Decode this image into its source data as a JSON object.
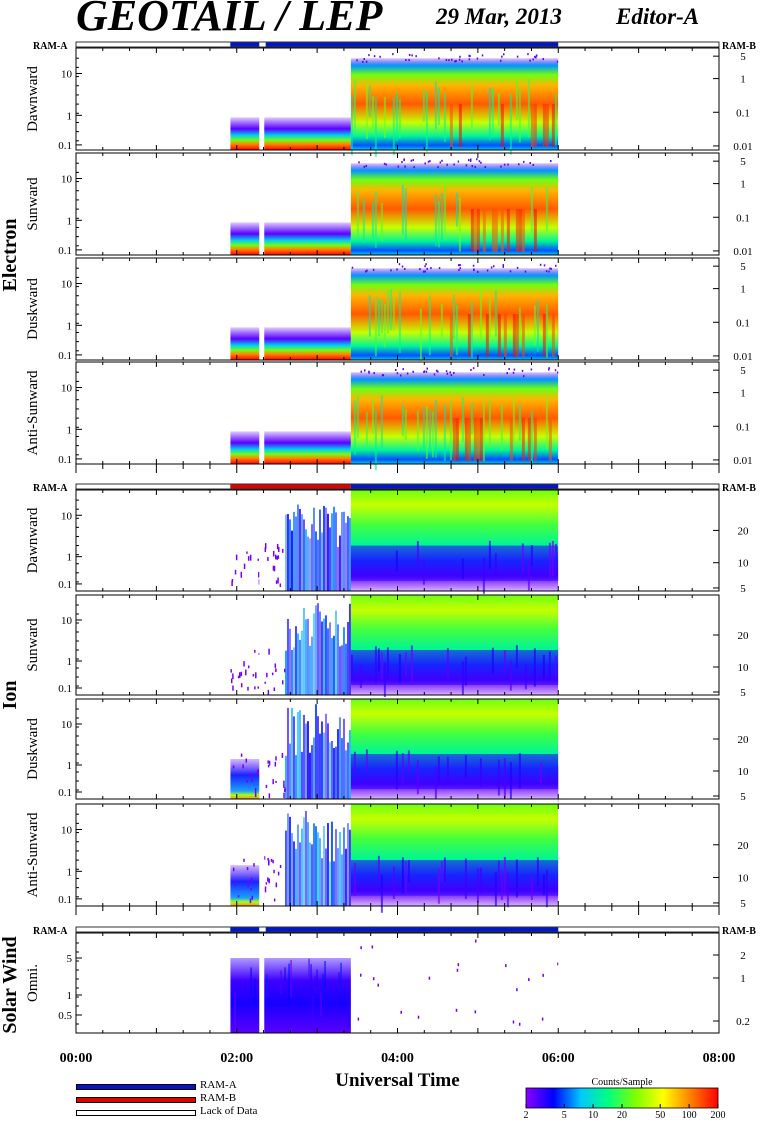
{
  "header": {
    "title": "GEOTAIL / LEP",
    "date": "29 Mar, 2013",
    "editor": "Editor-A"
  },
  "ram_labels": {
    "a": "RAM-A",
    "b": "RAM-B"
  },
  "colors": {
    "ram_a": "#0018c8",
    "ram_b": "#e00000",
    "lack": "#ffffff"
  },
  "chart_data": {
    "type": "heatmap",
    "xlabel": "Universal Time",
    "x_ticks": [
      "00:00",
      "02:00",
      "04:00",
      "06:00",
      "08:00"
    ],
    "xlim_hours": [
      0,
      8
    ],
    "data_window_hours": [
      1.92,
      6.0
    ],
    "groups": [
      {
        "name": "Electron",
        "ram_bar": [
          {
            "mode": "RAM-A",
            "from_h": 1.92,
            "to_h": 2.28
          },
          {
            "mode": "RAM-A",
            "from_h": 2.36,
            "to_h": 6.0
          }
        ],
        "left_ticks": [
          "10",
          "1",
          "0.1"
        ],
        "right_ticks": [
          "5",
          "1",
          "0.1",
          "0.01"
        ],
        "panels": [
          "Dawnward",
          "Sunward",
          "Duskward",
          "Anti-Sunward"
        ]
      },
      {
        "name": "Ion",
        "ram_bar": [
          {
            "mode": "RAM-B",
            "from_h": 1.92,
            "to_h": 3.42
          },
          {
            "mode": "RAM-A",
            "from_h": 3.42,
            "to_h": 6.0
          }
        ],
        "left_ticks": [
          "10",
          "1",
          "0.1"
        ],
        "right_ticks": [
          "20",
          "10",
          "5"
        ],
        "panels": [
          "Dawnward",
          "Sunward",
          "Duskward",
          "Anti-Sunward"
        ]
      },
      {
        "name": "Solar Wind",
        "ram_bar": [
          {
            "mode": "RAM-A",
            "from_h": 1.92,
            "to_h": 2.28
          },
          {
            "mode": "RAM-A",
            "from_h": 2.36,
            "to_h": 6.0
          }
        ],
        "left_ticks": [
          "5",
          "1",
          "0.5"
        ],
        "right_ticks": [
          "2",
          "1",
          "0.2"
        ],
        "panels": [
          "Omni."
        ]
      }
    ],
    "colorbar": {
      "title": "Counts/Sample",
      "ticks": [
        "2",
        "5",
        "10",
        "20",
        "50",
        "100",
        "200"
      ],
      "scale": "log",
      "colors": [
        "#8a00ff",
        "#0000ff",
        "#00c8ff",
        "#00ff80",
        "#80ff00",
        "#ffff00",
        "#ff8000",
        "#ff0000"
      ]
    }
  },
  "legend": [
    {
      "key": "ram_a",
      "label": "RAM-A"
    },
    {
      "key": "ram_b",
      "label": "RAM-B"
    },
    {
      "key": "lack",
      "label": "Lack of Data"
    }
  ]
}
